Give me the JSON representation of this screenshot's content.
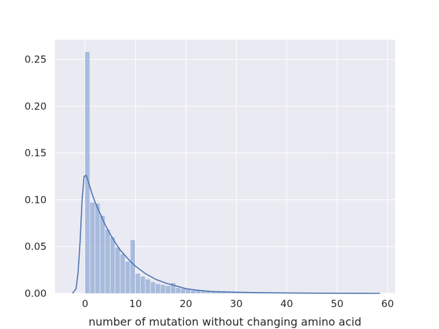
{
  "chart_data": {
    "type": "histogram",
    "title": "",
    "xlabel": "number of mutation without changing amino acid",
    "ylabel": "",
    "xlim": [
      -6,
      61.5
    ],
    "ylim": [
      0,
      0.271
    ],
    "grid": true,
    "x_ticks": [
      0,
      10,
      20,
      30,
      40,
      50,
      60
    ],
    "y_ticks": [
      0.0,
      0.05,
      0.1,
      0.15,
      0.2,
      0.25
    ],
    "x_tick_labels": [
      "0",
      "10",
      "20",
      "30",
      "40",
      "50",
      "60"
    ],
    "y_tick_labels": [
      "0.00",
      "0.05",
      "0.10",
      "0.15",
      "0.20",
      "0.25"
    ],
    "bins": {
      "start": 0,
      "width": 1,
      "density": [
        0.258,
        0.097,
        0.096,
        0.083,
        0.068,
        0.06,
        0.049,
        0.042,
        0.034,
        0.057,
        0.021,
        0.018,
        0.015,
        0.012,
        0.01,
        0.009,
        0.008,
        0.011,
        0.006,
        0.005,
        0.004,
        0.003,
        0.003,
        0.002,
        0.002,
        0.002,
        0.0015,
        0.0015,
        0.001,
        0.001,
        0.001,
        0.0008,
        0.0008,
        0.0007,
        0.0006,
        0.0005,
        0.0005,
        0.0004,
        0.0004,
        0.0003,
        0.0003,
        0.0003,
        0.0002,
        0.0002,
        0.0002,
        0.0002,
        0.0001,
        0.0001,
        0.0001,
        0.0001,
        0.0001,
        0.0001,
        0.0001,
        0.0001,
        0.0001,
        0.0001,
        0.0001,
        0.0001
      ]
    },
    "kde": {
      "x": [
        -2.5,
        -1.8,
        -1.4,
        -1.0,
        -0.6,
        -0.2,
        0.2,
        0.6,
        1.0,
        1.4,
        2.0,
        3.0,
        4.0,
        5.0,
        6.0,
        7.0,
        8.0,
        9.0,
        10.0,
        12.0,
        14.0,
        16.0,
        18.0,
        20.0,
        22.0,
        25.0,
        30.0,
        35.0,
        40.0,
        45.0,
        50.0,
        55.0,
        58.5
      ],
      "y": [
        0.0,
        0.005,
        0.022,
        0.055,
        0.1,
        0.125,
        0.126,
        0.12,
        0.113,
        0.106,
        0.097,
        0.085,
        0.073,
        0.063,
        0.054,
        0.046,
        0.04,
        0.034,
        0.029,
        0.021,
        0.015,
        0.011,
        0.008,
        0.005,
        0.0035,
        0.002,
        0.0012,
        0.0007,
        0.0004,
        0.0002,
        0.0001,
        5e-05,
        0.0
      ]
    },
    "colors": {
      "background": "#eaeaf2",
      "grid": "#ffffff",
      "bar": "#8fa9d4",
      "kde": "#4c72b0"
    }
  }
}
